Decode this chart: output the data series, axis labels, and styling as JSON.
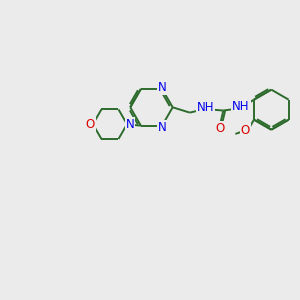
{
  "background_color": "#ebebeb",
  "bond_color": "#2d6b2d",
  "n_color": "#0000ee",
  "o_color": "#dd0000",
  "line_width": 1.4,
  "font_size": 8.5,
  "fig_w": 3.0,
  "fig_h": 3.0,
  "dpi": 100,
  "xlim": [
    0,
    10
  ],
  "ylim": [
    0,
    10
  ]
}
